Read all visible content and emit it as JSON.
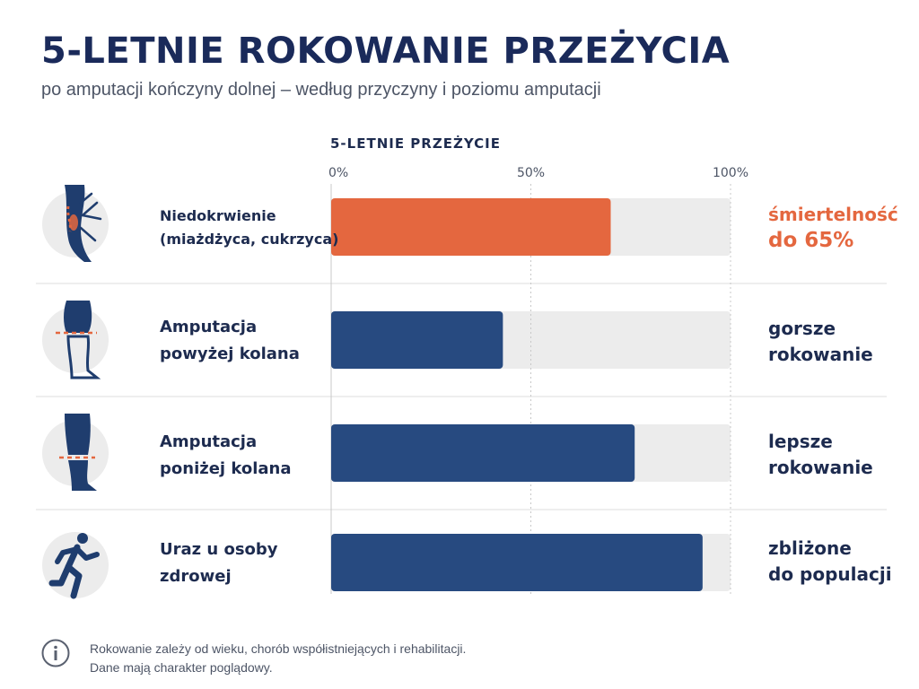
{
  "header": {
    "title": "5-LETNIE ROKOWANIE PRZEŻYCIA",
    "subtitle": "po amputacji kończyny dolnej – według przyczyny i poziomu amputacji"
  },
  "chart_data": {
    "type": "bar",
    "orientation": "horizontal",
    "axis_title": "5-LETNIE PRZEŻYCIE",
    "ticks": [
      "0%",
      "50%",
      "100%"
    ],
    "xlim": [
      0,
      100
    ],
    "grid": true,
    "track_color": "#ececec",
    "categories": [
      [
        "Niedokrwienie",
        "(miażdżyca, cukrzyca)"
      ],
      [
        "Amputacja",
        "powyżej kolana"
      ],
      [
        "Amputacja",
        "poniżej kolana"
      ],
      [
        "Uraz u osoby",
        "zdrowej"
      ]
    ],
    "values": [
      70,
      43,
      76,
      93
    ],
    "bar_colors": [
      "#e4673f",
      "#274a80",
      "#274a80",
      "#274a80"
    ],
    "annotations": [
      [
        "śmiertelność",
        "do 65%"
      ],
      [
        "gorsze",
        "rokowanie"
      ],
      [
        "lepsze",
        "rokowanie"
      ],
      [
        "zbliżone",
        "do populacji"
      ]
    ],
    "annotation_colors": [
      "#e4673f",
      "#1d2b4f",
      "#1d2b4f",
      "#1d2b4f"
    ]
  },
  "icons": [
    "ischemic-leg-icon",
    "above-knee-leg-icon",
    "below-knee-leg-icon",
    "running-person-icon",
    "info-icon"
  ],
  "colors": {
    "accent": "#e4673f",
    "navy": "#274a80",
    "title": "#1a2a5a",
    "icon_bg": "#ececec"
  },
  "footer": {
    "line1": "Rokowanie zależy od wieku, chorób współistniejących i rehabilitacji.",
    "line2": "Dane mają charakter poglądowy."
  }
}
